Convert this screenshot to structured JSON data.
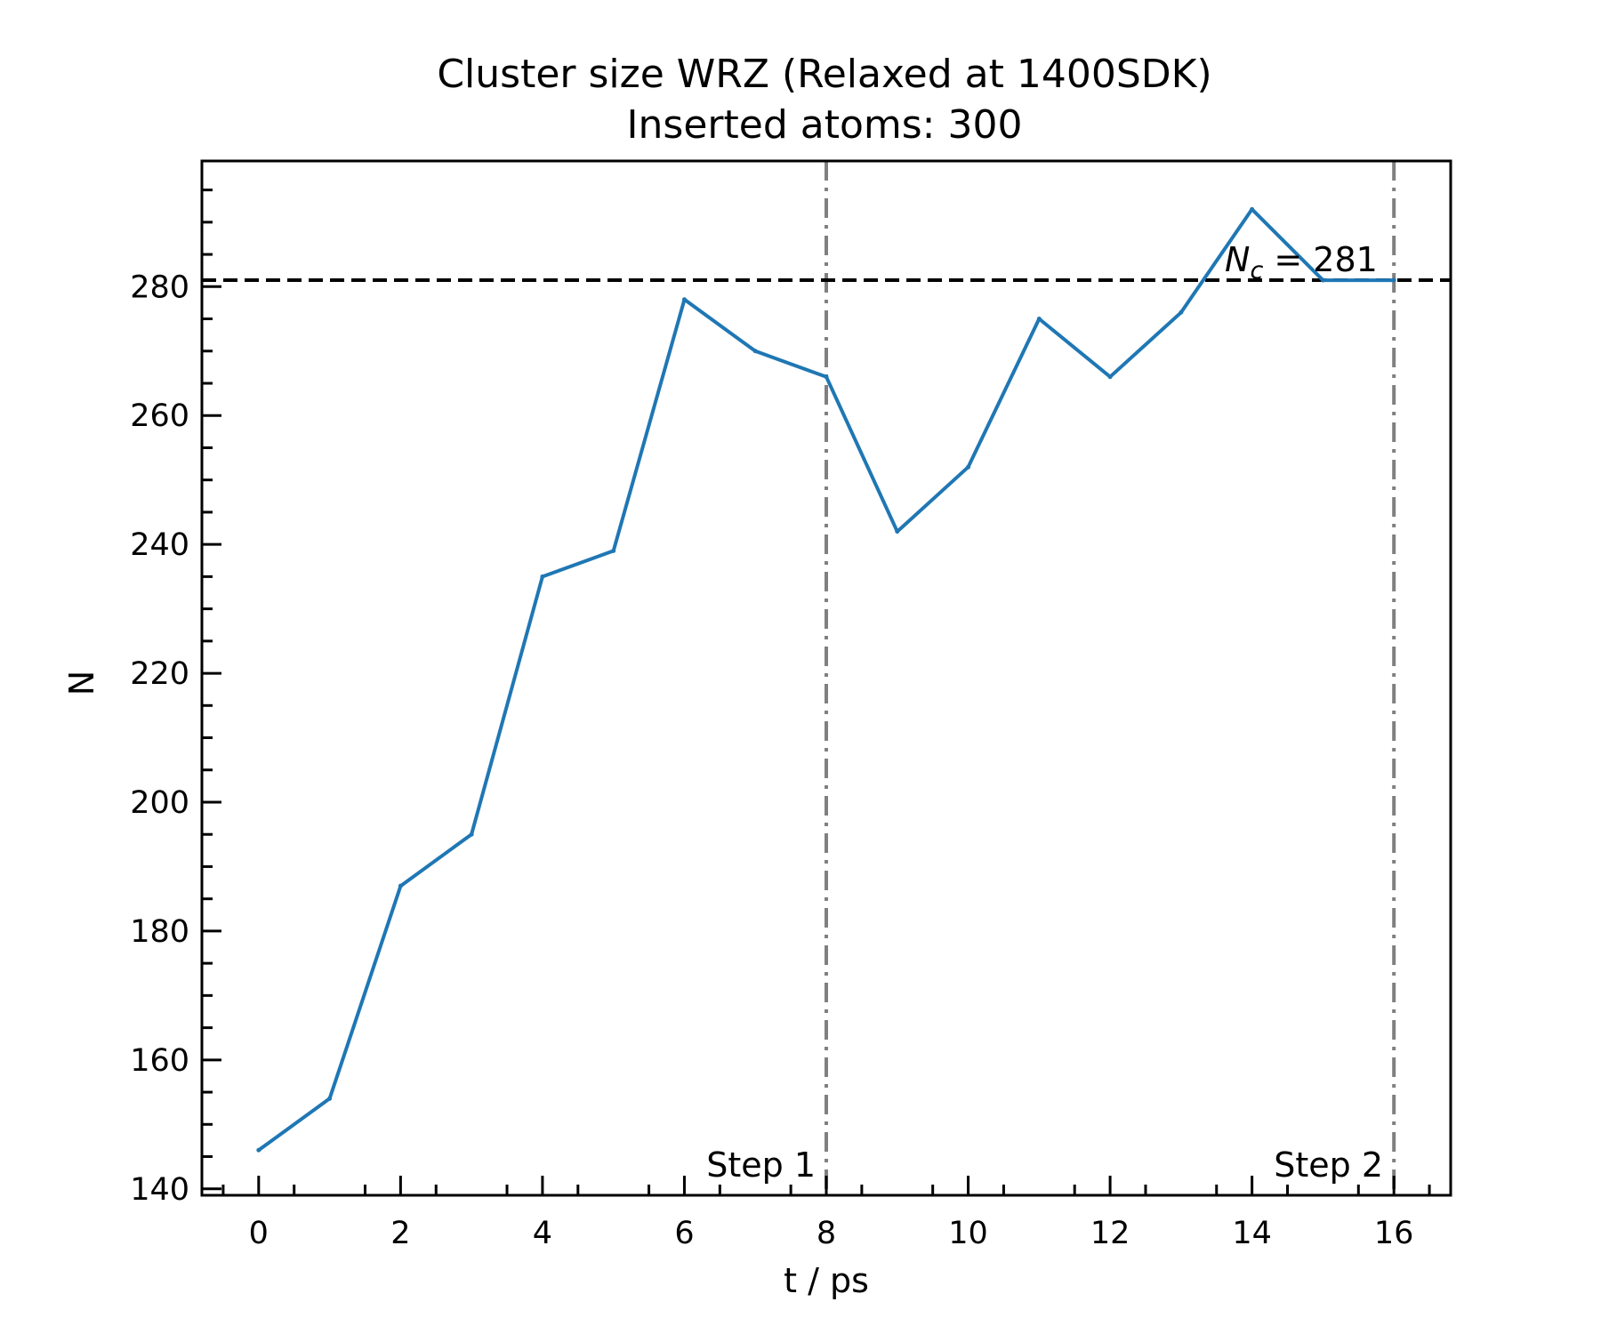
{
  "chart_data": {
    "type": "line",
    "title": "Cluster size WRZ (Relaxed at 1400SDK)",
    "subtitle": "Inserted atoms: 300",
    "xlabel": "t / ps",
    "ylabel": "N",
    "xlim": [
      -0.8,
      16.8
    ],
    "ylim": [
      139,
      299.5
    ],
    "xticks": [
      0,
      2,
      4,
      6,
      8,
      10,
      12,
      14,
      16
    ],
    "yticks": [
      140,
      160,
      180,
      200,
      220,
      240,
      260,
      280
    ],
    "xtick_labels": [
      "0",
      "2",
      "4",
      "6",
      "8",
      "10",
      "12",
      "14",
      "16"
    ],
    "ytick_labels": [
      "140",
      "160",
      "180",
      "200",
      "220",
      "240",
      "260",
      "280"
    ],
    "grid": false,
    "series": [
      {
        "color": "#1f77b4",
        "x": [
          0,
          1,
          2,
          3,
          4,
          5,
          6,
          7,
          8,
          9,
          10,
          11,
          12,
          13,
          14,
          15,
          16
        ],
        "y": [
          146,
          154,
          187,
          195,
          235,
          239,
          278,
          270,
          266,
          242,
          252,
          275,
          266,
          276,
          292,
          281,
          281
        ]
      }
    ],
    "hline": {
      "y": 281,
      "color": "#000000",
      "style": "dashed"
    },
    "vlines": [
      {
        "x": 8,
        "label": "Step 1",
        "color": "#808080",
        "style": "dashdot"
      },
      {
        "x": 16,
        "label": "Step 2",
        "color": "#808080",
        "style": "dashdot"
      }
    ],
    "annotation": {
      "symbol": "N",
      "subscript": "c",
      "text": " = 281"
    }
  }
}
